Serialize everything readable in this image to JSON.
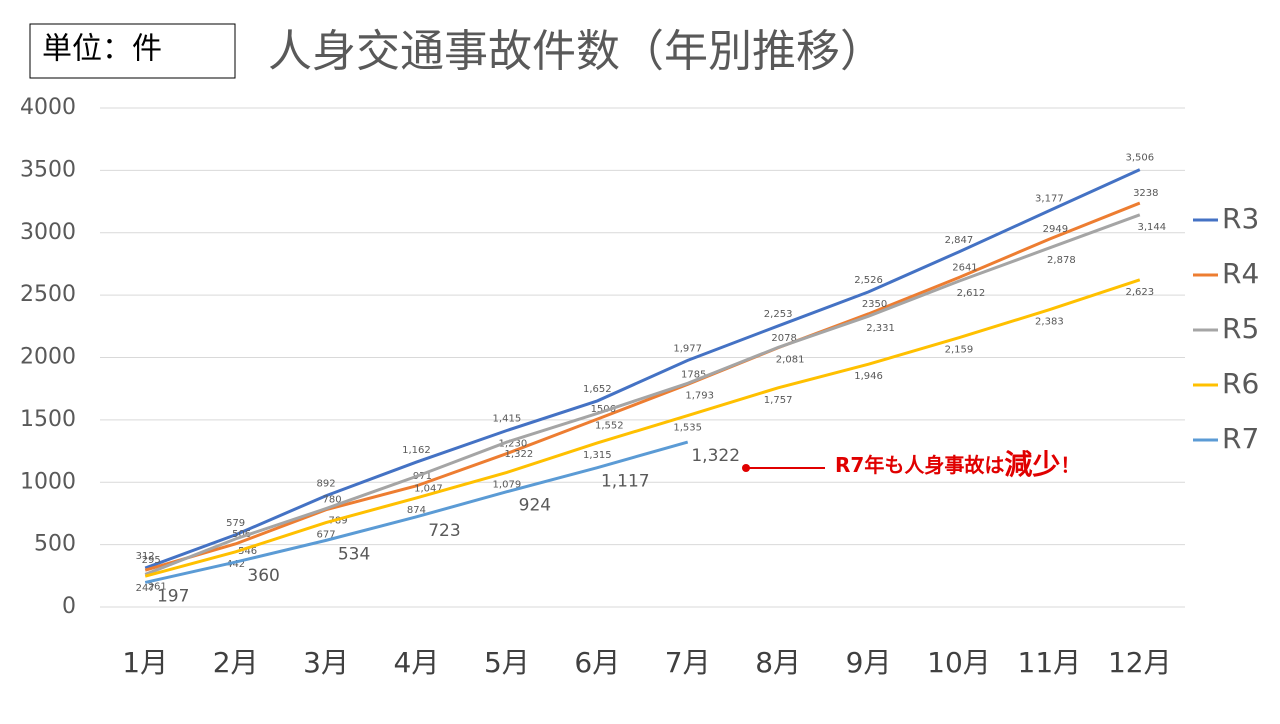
{
  "chart_data": {
    "type": "line",
    "title": "人身交通事故件数（年別推移）",
    "unit": "単位：件",
    "annotation": [
      "R7年も人身事故は",
      "減少",
      "！"
    ],
    "categories": [
      "1月",
      "2月",
      "3月",
      "4月",
      "5月",
      "6月",
      "7月",
      "8月",
      "9月",
      "10月",
      "11月",
      "12月"
    ],
    "ylim": [
      0,
      4000
    ],
    "yticks": [
      0,
      500,
      1000,
      1500,
      2000,
      2500,
      3000,
      3500,
      4000
    ],
    "grid": true,
    "legend": "right",
    "series": [
      {
        "name": "R3",
        "color": "#4472c4",
        "values": [
          312,
          579,
          892,
          1162,
          1415,
          1652,
          1977,
          2253,
          2526,
          2847,
          3177,
          3506
        ],
        "value_labels": [
          "312",
          "579",
          "892",
          "1,162",
          "1,415",
          "1,652",
          "1,977",
          "2,253",
          "2,526",
          "2,847",
          "3,177",
          "3,506"
        ]
      },
      {
        "name": "R4",
        "color": "#ed7d31",
        "values": [
          295,
          506,
          780,
          971,
          1230,
          1506,
          1785,
          2078,
          2350,
          2641,
          2949,
          3238
        ],
        "value_labels": [
          "295",
          "506",
          "780",
          "971",
          "1,230",
          "1506",
          "1785",
          "2078",
          "2350",
          "2641",
          "2949",
          "3238"
        ]
      },
      {
        "name": "R5",
        "color": "#a5a5a5",
        "values": [
          261,
          546,
          789,
          1047,
          1322,
          1552,
          1793,
          2081,
          2331,
          2612,
          2878,
          3144
        ],
        "value_labels": [
          "261",
          "546",
          "789",
          "1,047",
          "1,322",
          "1,552",
          "1,793",
          "2,081",
          "2,331",
          "2,612",
          "2,878",
          "3,144"
        ]
      },
      {
        "name": "R6",
        "color": "#ffc000",
        "values": [
          247,
          442,
          677,
          874,
          1079,
          1315,
          1535,
          1757,
          1946,
          2159,
          2383,
          2623
        ],
        "value_labels": [
          "247",
          "442",
          "677",
          "874",
          "1,079",
          "1,315",
          "1,535",
          "1,757",
          "1,946",
          "2,159",
          "2,383",
          "2,623"
        ]
      },
      {
        "name": "R7",
        "color": "#5b9bd5",
        "values": [
          197,
          360,
          534,
          723,
          924,
          1117,
          1322,
          null,
          null,
          null,
          null,
          null
        ],
        "value_labels": [
          "197",
          "360",
          "534",
          "723",
          "924",
          "1,117",
          "1,322",
          null,
          null,
          null,
          null,
          null
        ]
      }
    ]
  }
}
